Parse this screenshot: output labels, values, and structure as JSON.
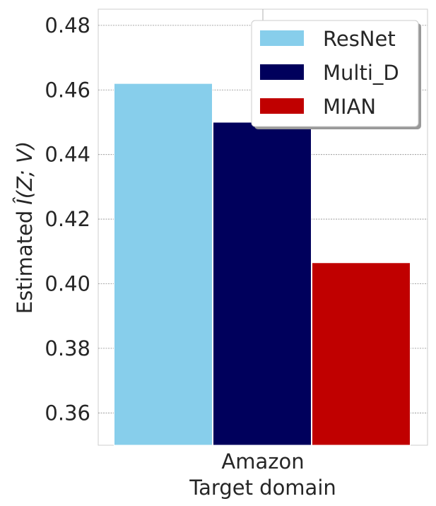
{
  "chart_data": {
    "type": "bar",
    "categories": [
      "Amazon"
    ],
    "series": [
      {
        "name": "ResNet",
        "values": [
          0.462
        ],
        "color": "#87ceeb"
      },
      {
        "name": "Multi_D",
        "values": [
          0.45
        ],
        "color": "#00005c"
      },
      {
        "name": "MIAN",
        "values": [
          0.4065
        ],
        "color": "#c00000"
      }
    ],
    "xlabel": "Target domain",
    "ylabel": "Estimated",
    "ylabel_math": "Î(Z; V)",
    "ylim": [
      0.35,
      0.485
    ],
    "yticks": [
      "0.36",
      "0.38",
      "0.40",
      "0.42",
      "0.44",
      "0.46",
      "0.48"
    ],
    "grid": true,
    "legend_position": "top-right"
  }
}
